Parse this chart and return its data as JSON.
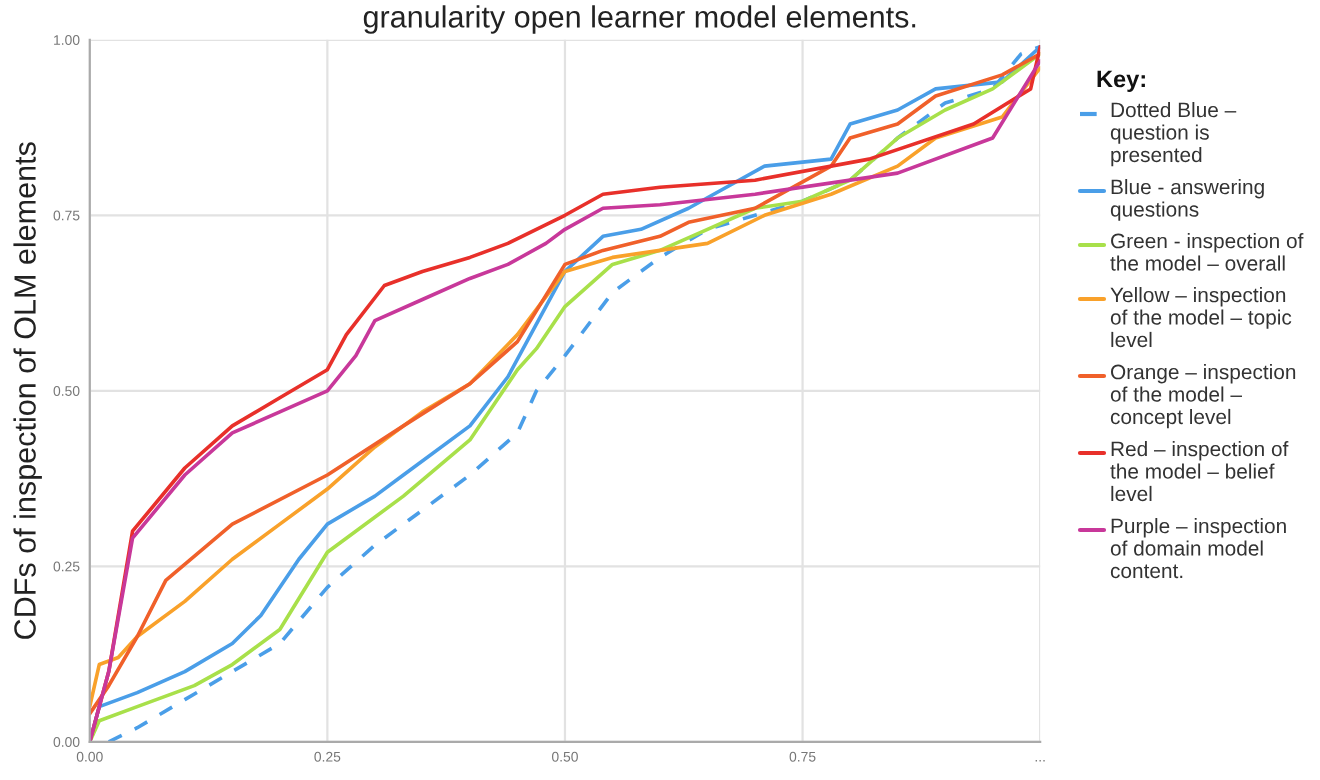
{
  "chart_data": {
    "type": "line",
    "title": "granularity open learner model elements.",
    "ylabel": "CDFs of inspection of OLM elements",
    "legend_title": "Key:",
    "legend": "right",
    "grid": true,
    "marker": "none",
    "xlim": [
      0,
      1
    ],
    "ylim": [
      0,
      1
    ],
    "xticks": [
      {
        "value": 0,
        "label": "0.00"
      },
      {
        "value": 0.25,
        "label": "0.25"
      },
      {
        "value": 0.5,
        "label": "0.50"
      },
      {
        "value": 0.75,
        "label": "0.75"
      },
      {
        "value": 1,
        "label": "..."
      }
    ],
    "yticks": [
      {
        "value": 0,
        "label": "0.00"
      },
      {
        "value": 0.25,
        "label": "0.25"
      },
      {
        "value": 0.5,
        "label": "0.50"
      },
      {
        "value": 0.75,
        "label": "0.75"
      },
      {
        "value": 1,
        "label": "1.00"
      }
    ],
    "series": [
      {
        "name": "Dotted Blue – question is presented",
        "color": "#4a9ee8",
        "line_style": "dashed",
        "x": [
          0.02,
          0.05,
          0.1,
          0.15,
          0.2,
          0.25,
          0.3,
          0.35,
          0.4,
          0.45,
          0.47,
          0.5,
          0.55,
          0.6,
          0.65,
          0.7,
          0.75,
          0.8,
          0.85,
          0.9,
          0.95,
          0.98,
          1.0
        ],
        "values": [
          0,
          0.02,
          0.06,
          0.1,
          0.14,
          0.22,
          0.28,
          0.33,
          0.38,
          0.44,
          0.5,
          0.55,
          0.64,
          0.69,
          0.73,
          0.75,
          0.77,
          0.8,
          0.86,
          0.91,
          0.93,
          0.98,
          0.99
        ]
      },
      {
        "name": "Blue - answering questions",
        "color": "#4a9ee8",
        "line_style": "solid",
        "x": [
          0,
          0.01,
          0.05,
          0.1,
          0.15,
          0.18,
          0.22,
          0.25,
          0.3,
          0.33,
          0.4,
          0.44,
          0.5,
          0.54,
          0.58,
          0.63,
          0.71,
          0.78,
          0.8,
          0.85,
          0.89,
          0.96,
          1.0
        ],
        "values": [
          0,
          0.05,
          0.07,
          0.1,
          0.14,
          0.18,
          0.26,
          0.31,
          0.35,
          0.38,
          0.45,
          0.52,
          0.67,
          0.72,
          0.73,
          0.76,
          0.82,
          0.83,
          0.88,
          0.9,
          0.93,
          0.94,
          0.99
        ]
      },
      {
        "name": "Green - inspection of the model – overall",
        "color": "#a8e04a",
        "line_style": "solid",
        "x": [
          0,
          0.01,
          0.05,
          0.11,
          0.15,
          0.2,
          0.25,
          0.33,
          0.4,
          0.45,
          0.47,
          0.5,
          0.55,
          0.6,
          0.65,
          0.7,
          0.75,
          0.8,
          0.85,
          0.9,
          0.95,
          1.0
        ],
        "values": [
          0,
          0.03,
          0.05,
          0.08,
          0.11,
          0.16,
          0.27,
          0.35,
          0.43,
          0.53,
          0.56,
          0.62,
          0.68,
          0.7,
          0.73,
          0.76,
          0.77,
          0.8,
          0.86,
          0.9,
          0.93,
          0.98
        ]
      },
      {
        "name": "Yellow – inspection of the model – topic level",
        "color": "#f9a12a",
        "line_style": "solid",
        "x": [
          0,
          0.01,
          0.03,
          0.05,
          0.1,
          0.15,
          0.2,
          0.25,
          0.3,
          0.35,
          0.4,
          0.45,
          0.5,
          0.55,
          0.6,
          0.65,
          0.71,
          0.78,
          0.85,
          0.89,
          0.96,
          1.0
        ],
        "values": [
          0.05,
          0.11,
          0.12,
          0.15,
          0.2,
          0.26,
          0.31,
          0.36,
          0.42,
          0.47,
          0.51,
          0.58,
          0.67,
          0.69,
          0.7,
          0.71,
          0.75,
          0.78,
          0.82,
          0.86,
          0.89,
          0.96
        ]
      },
      {
        "name": "Orange – inspection of the model – concept level",
        "color": "#f0602a",
        "line_style": "solid",
        "x": [
          0,
          0.02,
          0.05,
          0.08,
          0.15,
          0.25,
          0.33,
          0.4,
          0.45,
          0.5,
          0.54,
          0.6,
          0.63,
          0.7,
          0.78,
          0.8,
          0.85,
          0.89,
          0.96,
          1.0
        ],
        "values": [
          0.04,
          0.08,
          0.15,
          0.23,
          0.31,
          0.38,
          0.45,
          0.51,
          0.57,
          0.68,
          0.7,
          0.72,
          0.74,
          0.76,
          0.82,
          0.86,
          0.88,
          0.92,
          0.95,
          0.98
        ]
      },
      {
        "name": "Red – inspection of the model – belief level",
        "color": "#e8302a",
        "line_style": "solid",
        "x": [
          0,
          0.02,
          0.045,
          0.1,
          0.15,
          0.2,
          0.25,
          0.27,
          0.31,
          0.35,
          0.4,
          0.44,
          0.5,
          0.54,
          0.6,
          0.7,
          0.82,
          0.93,
          0.99,
          1.0
        ],
        "values": [
          0,
          0.1,
          0.3,
          0.39,
          0.45,
          0.49,
          0.53,
          0.58,
          0.65,
          0.67,
          0.69,
          0.71,
          0.75,
          0.78,
          0.79,
          0.8,
          0.83,
          0.88,
          0.93,
          0.99
        ]
      },
      {
        "name": "Purple – inspection of domain model content.",
        "color": "#c8389a",
        "line_style": "solid",
        "x": [
          0,
          0.02,
          0.045,
          0.1,
          0.15,
          0.2,
          0.25,
          0.28,
          0.3,
          0.35,
          0.4,
          0.44,
          0.48,
          0.5,
          0.54,
          0.6,
          0.7,
          0.85,
          0.95,
          1.0
        ],
        "values": [
          0,
          0.1,
          0.29,
          0.38,
          0.44,
          0.47,
          0.5,
          0.55,
          0.6,
          0.63,
          0.66,
          0.68,
          0.71,
          0.73,
          0.76,
          0.765,
          0.78,
          0.81,
          0.86,
          0.97
        ]
      }
    ]
  }
}
